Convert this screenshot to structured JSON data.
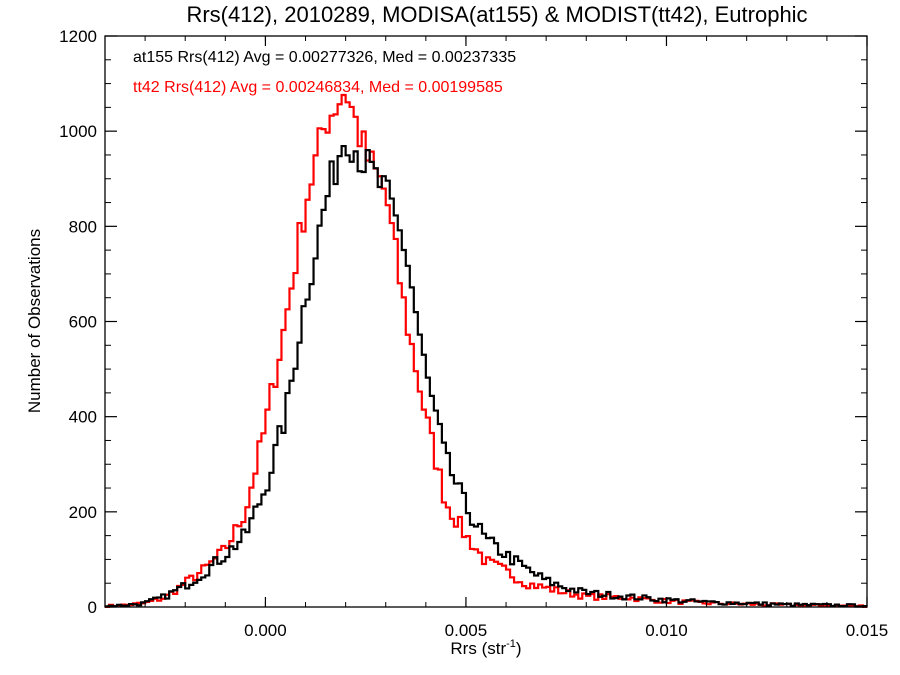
{
  "chart_data": {
    "type": "line",
    "style": "histogram-step",
    "title": "Rrs(412), 2010289, MODISA(at155) & MODIST(tt42), Eutrophic",
    "xlabel": "Rrs (str",
    "xlabel_sup": "-1",
    "xlabel_end": ")",
    "ylabel": "Number of Observations",
    "xlim": [
      -0.004,
      0.015
    ],
    "ylim": [
      0,
      1200
    ],
    "x_ticks": [
      0.0,
      0.005,
      0.01,
      0.015
    ],
    "x_tick_labels": [
      "0.000",
      "0.005",
      "0.010",
      "0.015"
    ],
    "y_ticks": [
      0,
      200,
      400,
      600,
      800,
      1000,
      1200
    ],
    "y_tick_labels": [
      "0",
      "200",
      "400",
      "600",
      "800",
      "1000",
      "1200"
    ],
    "grid": false,
    "legend_position": "top-left",
    "bin_width": 0.0001,
    "series": [
      {
        "name": "at155",
        "color": "#000000",
        "label": "at155 Rrs(412) Avg = 0.00277326, Med = 0.00237335",
        "points": [
          [
            -0.004,
            2
          ],
          [
            -0.0035,
            4
          ],
          [
            -0.003,
            8
          ],
          [
            -0.0025,
            22
          ],
          [
            -0.002,
            45
          ],
          [
            -0.0015,
            75
          ],
          [
            -0.001,
            110
          ],
          [
            -0.0005,
            150
          ],
          [
            0.0,
            250
          ],
          [
            0.0005,
            400
          ],
          [
            0.001,
            650
          ],
          [
            0.0015,
            850
          ],
          [
            0.002,
            1000
          ],
          [
            0.0025,
            930
          ],
          [
            0.003,
            870
          ],
          [
            0.0035,
            750
          ],
          [
            0.004,
            490
          ],
          [
            0.0045,
            310
          ],
          [
            0.005,
            210
          ],
          [
            0.0055,
            140
          ],
          [
            0.006,
            110
          ],
          [
            0.0065,
            80
          ],
          [
            0.007,
            55
          ],
          [
            0.0075,
            40
          ],
          [
            0.008,
            30
          ],
          [
            0.009,
            22
          ],
          [
            0.01,
            15
          ],
          [
            0.011,
            10
          ],
          [
            0.012,
            8
          ],
          [
            0.013,
            5
          ],
          [
            0.014,
            4
          ],
          [
            0.015,
            3
          ]
        ]
      },
      {
        "name": "tt42",
        "color": "#ff0000",
        "label": "tt42 Rrs(412) Avg = 0.00246834, Med = 0.00199585",
        "points": [
          [
            -0.004,
            2
          ],
          [
            -0.0035,
            4
          ],
          [
            -0.003,
            8
          ],
          [
            -0.0025,
            20
          ],
          [
            -0.002,
            50
          ],
          [
            -0.0015,
            80
          ],
          [
            -0.001,
            120
          ],
          [
            -0.0005,
            200
          ],
          [
            0.0,
            380
          ],
          [
            0.0005,
            600
          ],
          [
            0.001,
            850
          ],
          [
            0.0015,
            1020
          ],
          [
            0.002,
            1090
          ],
          [
            0.0025,
            950
          ],
          [
            0.003,
            870
          ],
          [
            0.0035,
            610
          ],
          [
            0.004,
            400
          ],
          [
            0.0045,
            220
          ],
          [
            0.005,
            150
          ],
          [
            0.0055,
            95
          ],
          [
            0.006,
            75
          ],
          [
            0.0065,
            50
          ],
          [
            0.007,
            40
          ],
          [
            0.0075,
            30
          ],
          [
            0.008,
            22
          ],
          [
            0.009,
            20
          ],
          [
            0.01,
            12
          ],
          [
            0.011,
            8
          ],
          [
            0.012,
            6
          ],
          [
            0.013,
            4
          ],
          [
            0.014,
            3
          ],
          [
            0.015,
            2
          ]
        ]
      }
    ]
  }
}
